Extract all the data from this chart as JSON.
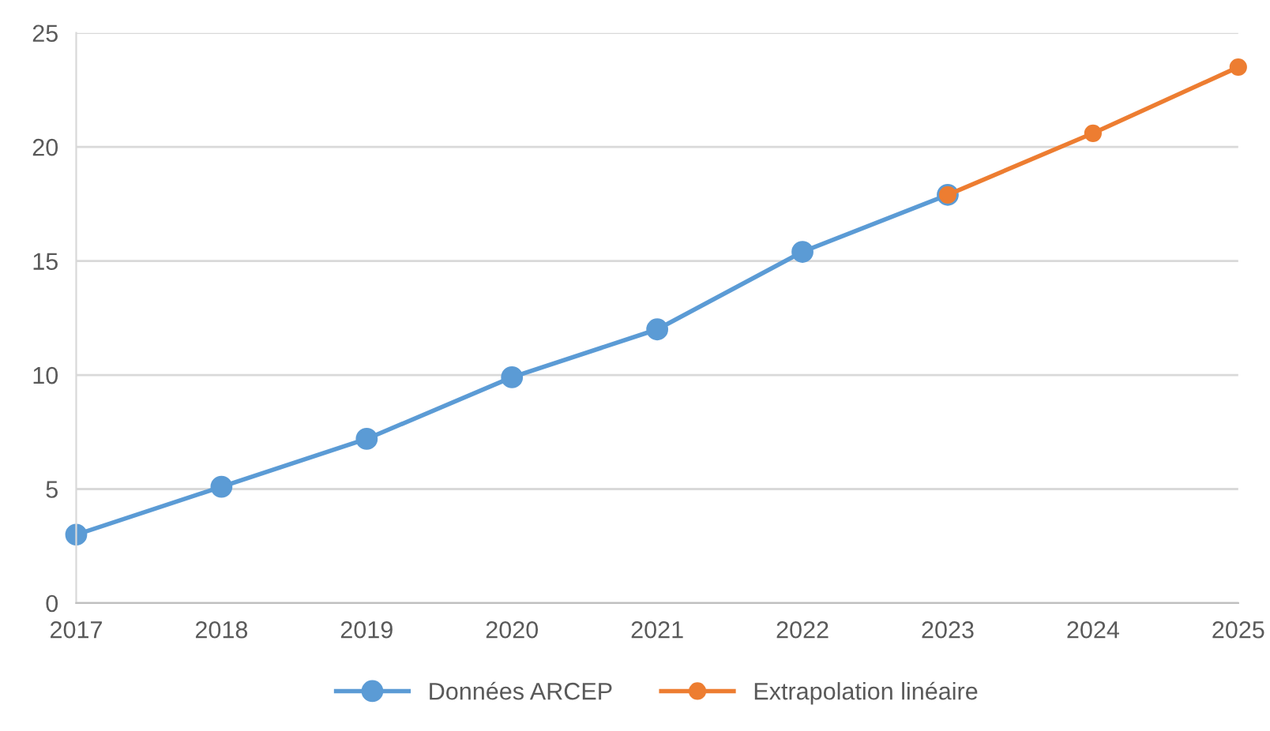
{
  "chart_data": {
    "type": "line",
    "x": [
      2017,
      2018,
      2019,
      2020,
      2021,
      2022,
      2023
    ],
    "series": [
      {
        "name": "Données ARCEP",
        "color": "#5b9bd5",
        "values": [
          3.0,
          5.1,
          7.2,
          9.9,
          12.0,
          15.4,
          17.9
        ]
      },
      {
        "name": "Extrapolation linéaire",
        "color": "#ed7d31",
        "x": [
          2023,
          2024,
          2025
        ],
        "values": [
          17.9,
          20.6,
          23.5
        ]
      }
    ],
    "xlim": [
      2017,
      2025
    ],
    "xticks": [
      2017,
      2018,
      2019,
      2020,
      2021,
      2022,
      2023,
      2024,
      2025
    ],
    "ylim": [
      0,
      25
    ],
    "yticks": [
      0,
      5,
      10,
      15,
      20,
      25
    ],
    "grid": "y",
    "legend": "bottom",
    "marker": "circle",
    "line_style": "solid"
  }
}
